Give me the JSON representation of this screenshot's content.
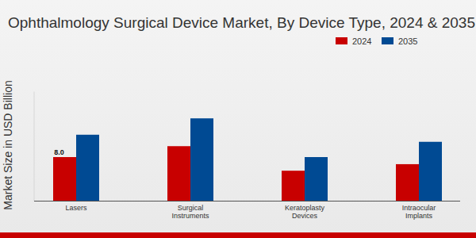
{
  "chart_data": {
    "type": "bar",
    "title": "Ophthalmology Surgical Device Market, By Device Type, 2024 & 2035",
    "y_label": "Market Size in USD Billion",
    "categories": [
      "Lasers",
      "Surgical Instruments",
      "Keratoplasty Devices",
      "Intraocular Implants"
    ],
    "series": [
      {
        "name": "2024",
        "color": "#c80000",
        "values": [
          8.0,
          10.0,
          5.5,
          6.7
        ],
        "value_labels": [
          "8.0",
          null,
          null,
          null
        ]
      },
      {
        "name": "2035",
        "color": "#004a93",
        "values": [
          12.1,
          15.1,
          8.0,
          10.8
        ]
      }
    ],
    "ylim": [
      0,
      20
    ],
    "tick_labels": "x",
    "legend": "top-right",
    "grid": false
  }
}
